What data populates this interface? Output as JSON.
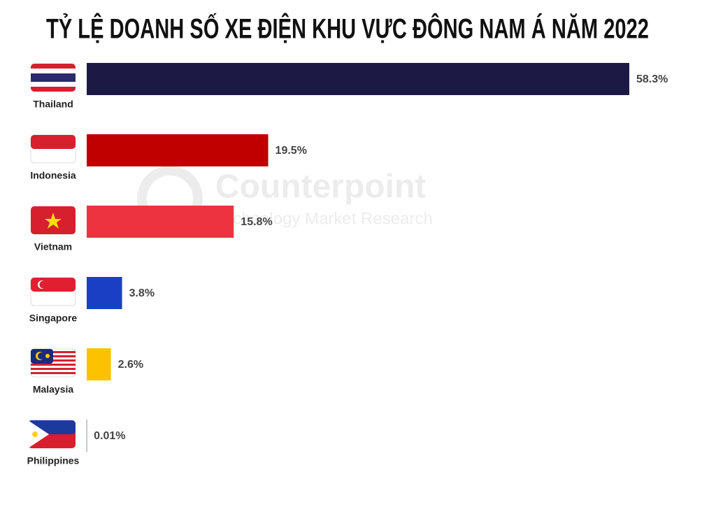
{
  "chart_data": {
    "type": "bar",
    "orientation": "horizontal",
    "title": "TỶ LỆ DOANH SỐ XE ĐIỆN KHU VỰC ĐÔNG NAM Á NĂM 2022",
    "watermark": [
      "Counterpoint",
      "Technology Market Research"
    ],
    "categories": [
      "Thailand",
      "Indonesia",
      "Vietnam",
      "Singapore",
      "Malaysia",
      "Philippines"
    ],
    "values": [
      58.3,
      19.5,
      15.8,
      3.8,
      2.6,
      0.01
    ],
    "value_labels": [
      "58.3%",
      "19.5%",
      "15.8%",
      "3.8%",
      "2.6%",
      "0.01%"
    ],
    "colors": [
      "#1c1a45",
      "#c00000",
      "#ee3340",
      "#1a3fc4",
      "#fcc200",
      "#9aa0a8"
    ]
  }
}
